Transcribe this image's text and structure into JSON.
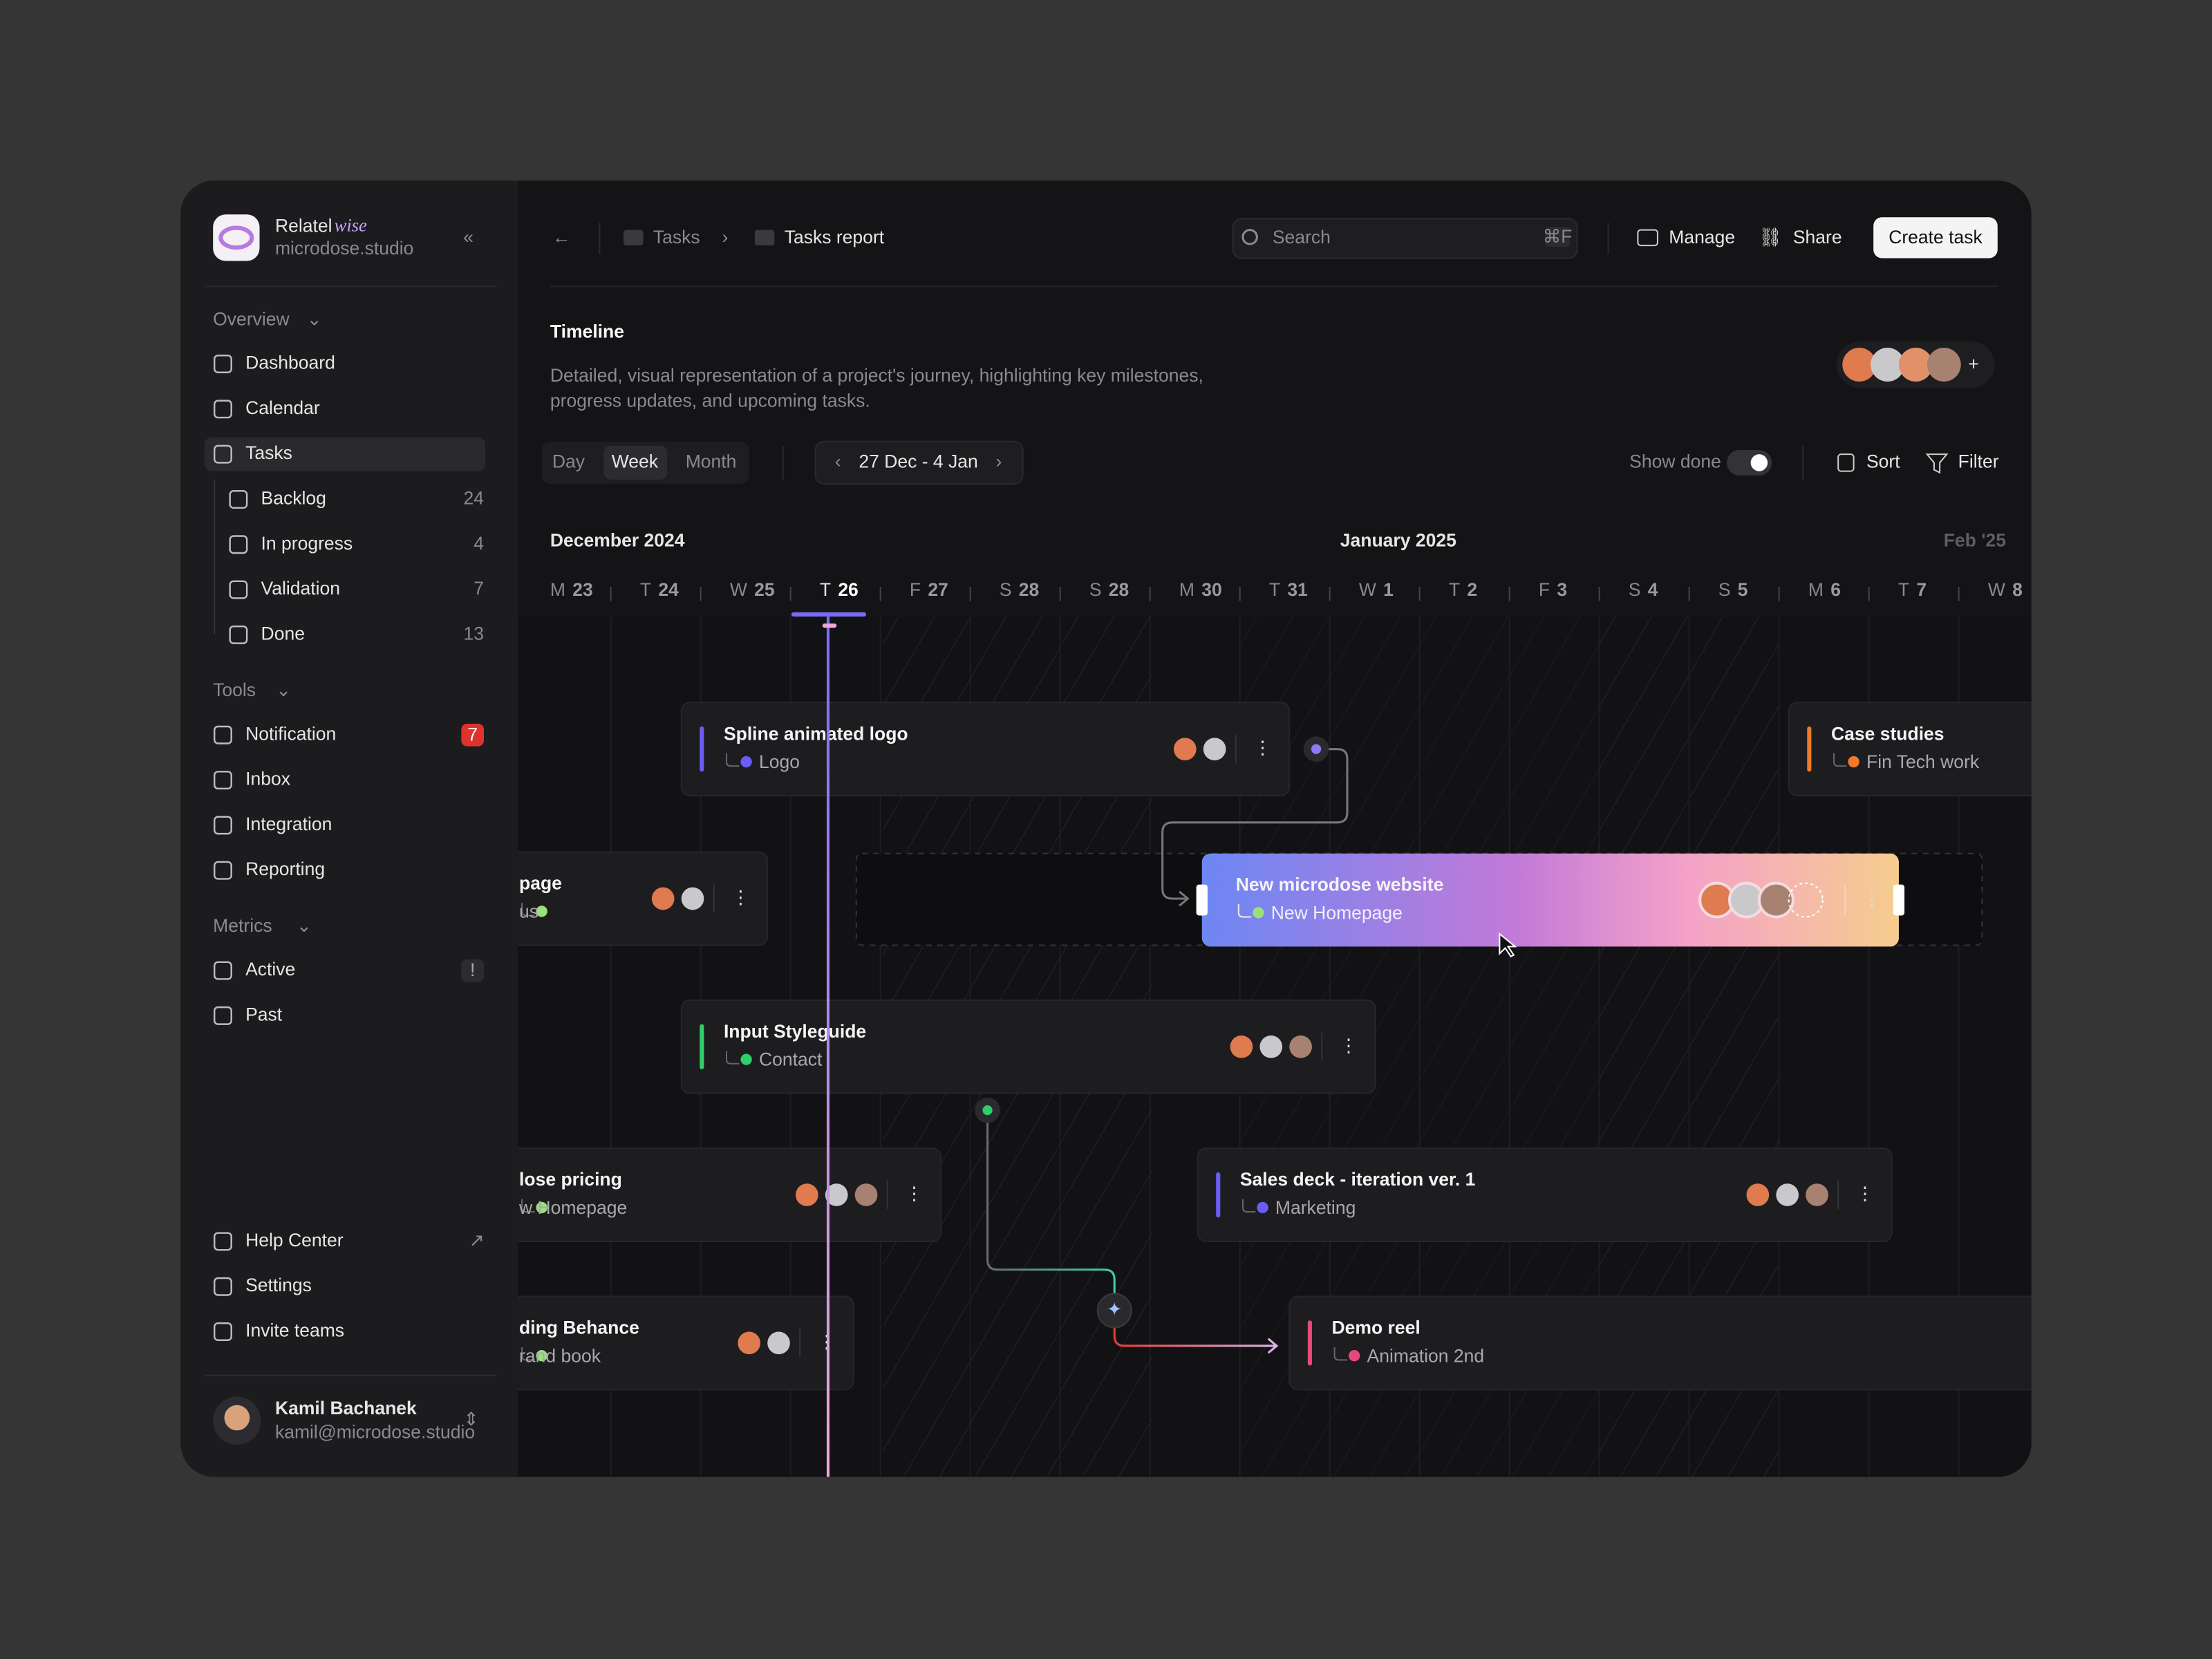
{
  "brand": {
    "name": "Relatel",
    "accent": "wise",
    "domain": "microdose.studio"
  },
  "sidebar": {
    "sections": [
      {
        "title": "Overview",
        "items": [
          {
            "label": "Dashboard"
          },
          {
            "label": "Calendar"
          },
          {
            "label": "Tasks",
            "children": [
              {
                "label": "Backlog",
                "count": 24
              },
              {
                "label": "In progress",
                "count": 4
              },
              {
                "label": "Validation",
                "count": 7
              },
              {
                "label": "Done",
                "count": 13
              }
            ]
          }
        ]
      },
      {
        "title": "Tools",
        "items": [
          {
            "label": "Notification",
            "badge": 7
          },
          {
            "label": "Inbox"
          },
          {
            "label": "Integration"
          },
          {
            "label": "Reporting"
          }
        ]
      },
      {
        "title": "Metrics",
        "items": [
          {
            "label": "Active",
            "badge": "!"
          },
          {
            "label": "Past"
          }
        ]
      }
    ],
    "footer_links": [
      "Help Center",
      "Settings",
      "Invite teams"
    ],
    "user": {
      "name": "Kamil Bachanek",
      "email": "kamil@microdose.studio"
    }
  },
  "header": {
    "breadcrumbs": [
      "Tasks",
      "Tasks report"
    ],
    "search_placeholder": "Search",
    "search_shortcut": "⌘F",
    "actions": [
      "Manage",
      "Share"
    ],
    "primary_button": "Create task"
  },
  "page": {
    "title": "Timeline",
    "description": [
      "Detailed, visual representation of a project's journey, highlighting key milestones,",
      "progress updates, and upcoming tasks."
    ]
  },
  "controls": {
    "views": [
      "Day",
      "Week",
      "Month"
    ],
    "date_range": "27 Dec - 4 Jan",
    "show_done": "Show done",
    "sort": "Sort",
    "filter": "Filter"
  },
  "timeline": {
    "months": [
      "December 2024",
      "January 2025",
      "Feb '25"
    ],
    "days": [
      {
        "weekday": "M",
        "day": 23
      },
      {
        "weekday": "T",
        "day": 24
      },
      {
        "weekday": "W",
        "day": 25
      },
      {
        "weekday": "T",
        "day": 26
      },
      {
        "weekday": "F",
        "day": 27
      },
      {
        "weekday": "S",
        "day": 28
      },
      {
        "weekday": "S",
        "day": 28
      },
      {
        "weekday": "M",
        "day": 30
      },
      {
        "weekday": "T",
        "day": 31
      },
      {
        "weekday": "W",
        "day": 1
      },
      {
        "weekday": "T",
        "day": 2
      },
      {
        "weekday": "F",
        "day": 3
      },
      {
        "weekday": "S",
        "day": 4
      },
      {
        "weekday": "S",
        "day": 5
      },
      {
        "weekday": "M",
        "day": 6
      },
      {
        "weekday": "T",
        "day": 7
      },
      {
        "weekday": "W",
        "day": 8
      }
    ],
    "tasks": [
      {
        "title": "Spline animated logo",
        "subtitle": "Logo"
      },
      {
        "title": "page",
        "subtitle": "us"
      },
      {
        "title": "New microdose website",
        "subtitle": "New Homepage"
      },
      {
        "title": "Input Styleguide",
        "subtitle": "Contact"
      },
      {
        "title": "lose pricing",
        "subtitle": "w Homepage"
      },
      {
        "title": "Sales deck - iteration ver. 1",
        "subtitle": "Marketing"
      },
      {
        "title": "ding Behance",
        "subtitle": "rand book"
      },
      {
        "title": "Demo reel",
        "subtitle": "Animation 2nd"
      },
      {
        "title": "Case studies",
        "subtitle": "Fin Tech work"
      }
    ]
  }
}
